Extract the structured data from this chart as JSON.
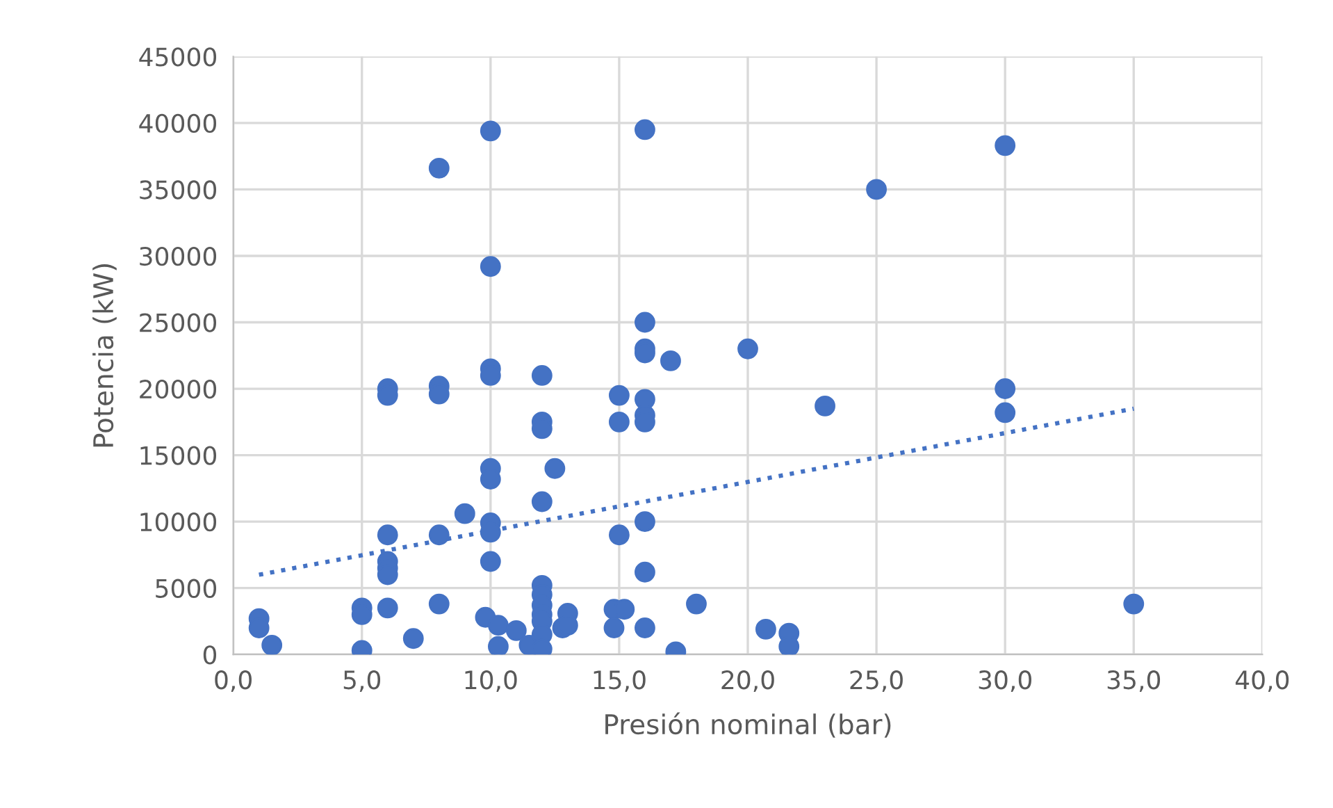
{
  "chart_data": {
    "type": "scatter",
    "xlabel": "Presión nominal (bar)",
    "ylabel": "Potencia (kW)",
    "xlim": [
      0,
      40
    ],
    "xticks": [
      {
        "value": 0,
        "label": "0,0"
      },
      {
        "value": 5,
        "label": "5,0"
      },
      {
        "value": 10,
        "label": "10,0"
      },
      {
        "value": 15,
        "label": "15,0"
      },
      {
        "value": 20,
        "label": "20,0"
      },
      {
        "value": 25,
        "label": "25,0"
      },
      {
        "value": 30,
        "label": "30,0"
      },
      {
        "value": 35,
        "label": "35,0"
      },
      {
        "value": 40,
        "label": "40,0"
      }
    ],
    "ylim": [
      0,
      45000
    ],
    "yticks": [
      0,
      5000,
      10000,
      15000,
      20000,
      25000,
      30000,
      35000,
      40000,
      45000
    ],
    "grid": true,
    "series": [
      {
        "color": "#4472c4",
        "marker": "circle",
        "x": [
          1,
          1,
          1.5,
          5,
          5,
          5,
          6,
          6,
          6,
          6,
          6,
          6,
          6,
          7,
          8,
          8,
          8,
          8,
          8,
          9,
          10,
          10,
          10,
          10,
          10,
          10,
          10,
          10,
          10,
          9.8,
          10.3,
          10.3,
          11,
          11.5,
          12,
          12,
          12,
          12,
          12,
          12,
          12,
          12,
          12,
          12,
          12,
          12.5,
          12.8,
          13,
          13,
          14.8,
          14.8,
          15,
          15,
          15,
          15.2,
          16,
          16,
          16,
          16,
          16,
          16,
          16,
          16,
          16,
          16,
          17,
          17.2,
          18,
          20,
          20.7,
          21.6,
          21.6,
          23,
          25,
          30,
          30,
          30,
          35
        ],
        "values": [
          2700,
          2000,
          700,
          3500,
          3000,
          300,
          20000,
          19500,
          9000,
          7000,
          6500,
          6000,
          3500,
          1200,
          36600,
          20200,
          19600,
          9000,
          3800,
          10600,
          39400,
          29200,
          21500,
          21000,
          14000,
          13200,
          9900,
          9200,
          7000,
          2800,
          2200,
          600,
          1800,
          700,
          21000,
          17500,
          17000,
          11500,
          5200,
          4500,
          3700,
          3000,
          2500,
          1500,
          400,
          14000,
          2000,
          3100,
          2200,
          3400,
          2000,
          19500,
          17500,
          9000,
          3400,
          39500,
          25000,
          23000,
          22700,
          19200,
          18000,
          17500,
          10000,
          6200,
          2000,
          22100,
          200,
          3800,
          23000,
          1900,
          1600,
          600,
          18700,
          35000,
          38300,
          20000,
          18200,
          3800
        ]
      },
      {
        "type": "line",
        "color": "#4472c4",
        "line_style": "dotted",
        "marker": "none",
        "x": [
          1,
          35
        ],
        "values": [
          6000,
          18500
        ]
      }
    ]
  }
}
